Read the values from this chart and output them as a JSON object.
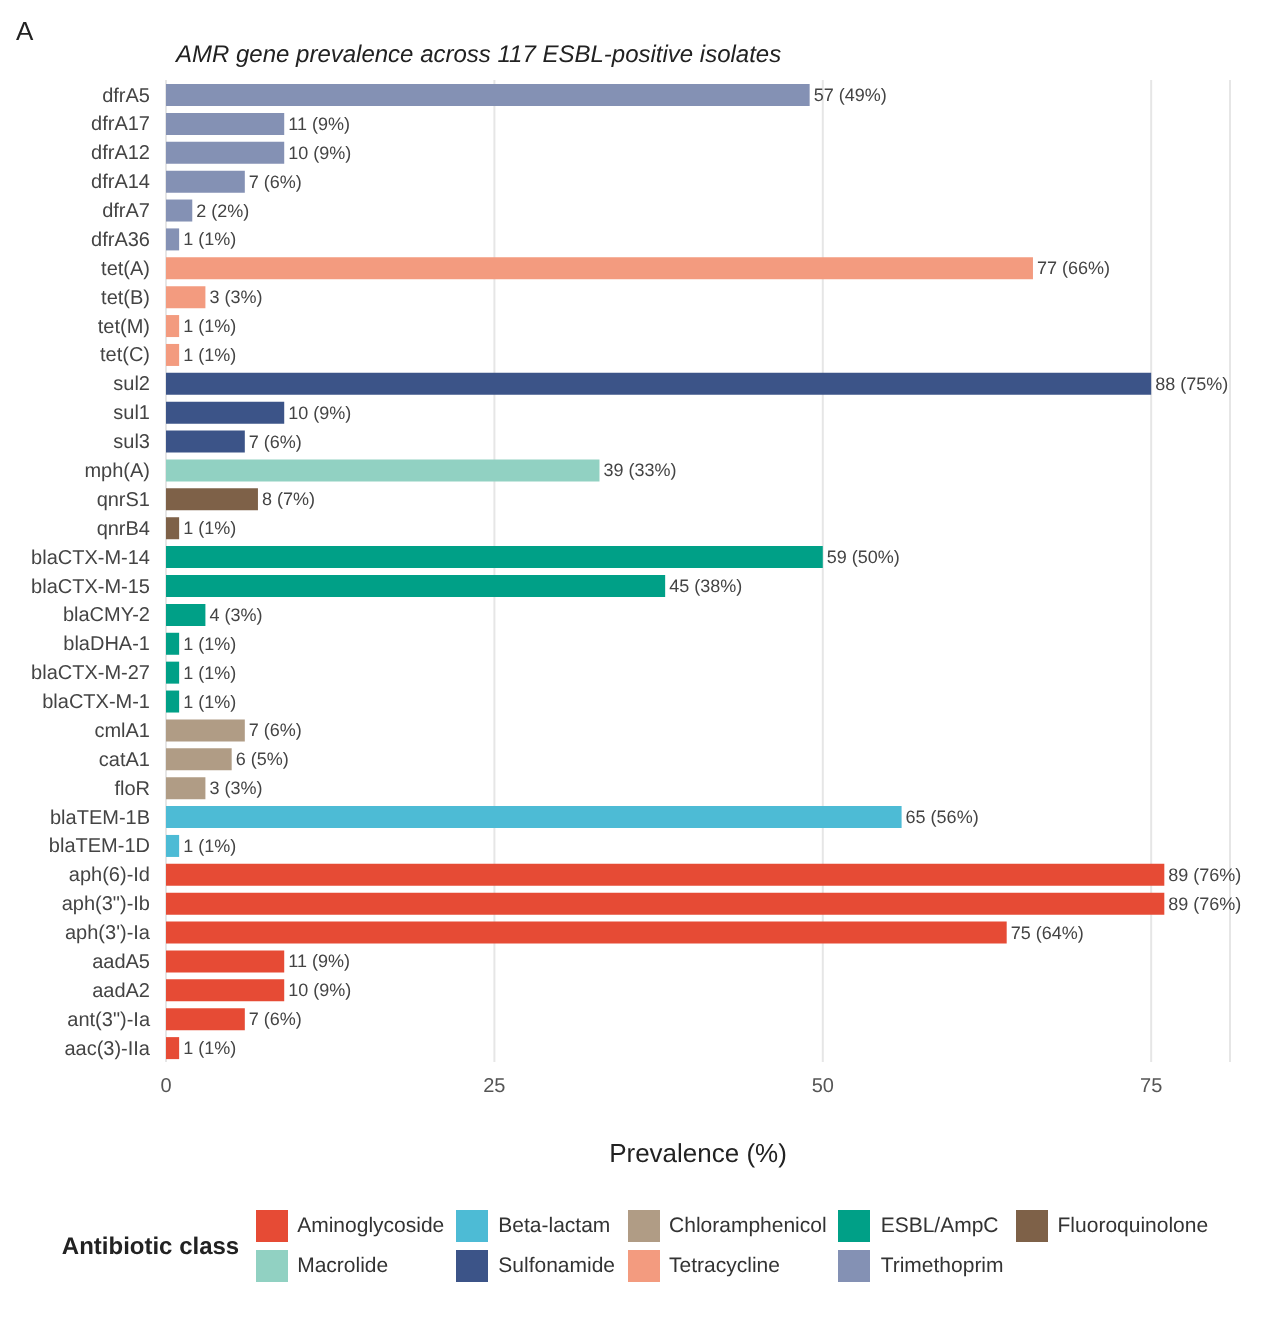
{
  "chart_data": {
    "type": "bar",
    "orientation": "horizontal",
    "stacked": true,
    "title": "AMR gene prevalence across 117 ESBL-positive isolates",
    "xlabel": "Prevalence (%)",
    "legend_title": "Antibiotic class",
    "annotations": [
      "A"
    ],
    "categories": [
      "dfrA5",
      "dfrA17",
      "dfrA12",
      "dfrA14",
      "dfrA7",
      "dfrA36",
      "tet(A)",
      "tet(B)",
      "tet(M)",
      "tet(C)",
      "sul2",
      "sul1",
      "sul3",
      "mph(A)",
      "qnrS1",
      "qnrB4",
      "blaCTX-M-14",
      "blaCTX-M-15",
      "blaCMY-2",
      "blaDHA-1",
      "blaCTX-M-27",
      "blaCTX-M-1",
      "cmlA1",
      "catA1",
      "floR",
      "blaTEM-1B",
      "blaTEM-1D",
      "aph(6)-Id",
      "aph(3\")-Ib",
      "aph(3')-Ia",
      "aadA5",
      "aadA2",
      "ant(3\")-Ia",
      "aac(3)-IIa"
    ],
    "series": [
      {
        "name": "Aminoglycoside",
        "color": "#e64b35",
        "values": [
          null,
          null,
          null,
          null,
          null,
          null,
          null,
          null,
          null,
          null,
          null,
          null,
          null,
          null,
          null,
          null,
          null,
          null,
          null,
          null,
          null,
          null,
          null,
          null,
          null,
          null,
          null,
          76,
          76,
          64,
          9,
          9,
          6,
          1
        ],
        "value_labels": [
          null,
          null,
          null,
          null,
          null,
          null,
          null,
          null,
          null,
          null,
          null,
          null,
          null,
          null,
          null,
          null,
          null,
          null,
          null,
          null,
          null,
          null,
          null,
          null,
          null,
          null,
          null,
          "89 (76%)",
          "89 (76%)",
          "75 (64%)",
          "11 (9%)",
          "10 (9%)",
          "7 (6%)",
          "1 (1%)"
        ]
      },
      {
        "name": "Beta-lactam",
        "color": "#4dbbd5",
        "values": [
          null,
          null,
          null,
          null,
          null,
          null,
          null,
          null,
          null,
          null,
          null,
          null,
          null,
          null,
          null,
          null,
          null,
          null,
          null,
          null,
          null,
          null,
          null,
          null,
          null,
          56,
          1,
          null,
          null,
          null,
          null,
          null,
          null,
          null
        ],
        "value_labels": [
          null,
          null,
          null,
          null,
          null,
          null,
          null,
          null,
          null,
          null,
          null,
          null,
          null,
          null,
          null,
          null,
          null,
          null,
          null,
          null,
          null,
          null,
          null,
          null,
          null,
          "65 (56%)",
          "1 (1%)",
          null,
          null,
          null,
          null,
          null,
          null,
          null
        ]
      },
      {
        "name": "Chloramphenicol",
        "color": "#b09c85",
        "values": [
          null,
          null,
          null,
          null,
          null,
          null,
          null,
          null,
          null,
          null,
          null,
          null,
          null,
          null,
          null,
          null,
          null,
          null,
          null,
          null,
          null,
          null,
          6,
          5,
          3,
          null,
          null,
          null,
          null,
          null,
          null,
          null,
          null,
          null
        ],
        "value_labels": [
          null,
          null,
          null,
          null,
          null,
          null,
          null,
          null,
          null,
          null,
          null,
          null,
          null,
          null,
          null,
          null,
          null,
          null,
          null,
          null,
          null,
          null,
          "7 (6%)",
          "6 (5%)",
          "3 (3%)",
          null,
          null,
          null,
          null,
          null,
          null,
          null,
          null,
          null
        ]
      },
      {
        "name": "ESBL/AmpC",
        "color": "#00a087",
        "values": [
          null,
          null,
          null,
          null,
          null,
          null,
          null,
          null,
          null,
          null,
          null,
          null,
          null,
          null,
          null,
          null,
          50,
          38,
          3,
          1,
          1,
          1,
          null,
          null,
          null,
          null,
          null,
          null,
          null,
          null,
          null,
          null,
          null,
          null
        ],
        "value_labels": [
          null,
          null,
          null,
          null,
          null,
          null,
          null,
          null,
          null,
          null,
          null,
          null,
          null,
          null,
          null,
          null,
          "59 (50%)",
          "45 (38%)",
          "4 (3%)",
          "1 (1%)",
          "1 (1%)",
          "1 (1%)",
          null,
          null,
          null,
          null,
          null,
          null,
          null,
          null,
          null,
          null,
          null,
          null
        ]
      },
      {
        "name": "Fluoroquinolone",
        "color": "#7e6148",
        "values": [
          null,
          null,
          null,
          null,
          null,
          null,
          null,
          null,
          null,
          null,
          null,
          null,
          null,
          null,
          7,
          1,
          null,
          null,
          null,
          null,
          null,
          null,
          null,
          null,
          null,
          null,
          null,
          null,
          null,
          null,
          null,
          null,
          null,
          null
        ],
        "value_labels": [
          null,
          null,
          null,
          null,
          null,
          null,
          null,
          null,
          null,
          null,
          null,
          null,
          null,
          null,
          "8 (7%)",
          "1 (1%)",
          null,
          null,
          null,
          null,
          null,
          null,
          null,
          null,
          null,
          null,
          null,
          null,
          null,
          null,
          null,
          null,
          null,
          null
        ]
      },
      {
        "name": "Macrolide",
        "color": "#91d1c2",
        "values": [
          null,
          null,
          null,
          null,
          null,
          null,
          null,
          null,
          null,
          null,
          null,
          null,
          null,
          33,
          null,
          null,
          null,
          null,
          null,
          null,
          null,
          null,
          null,
          null,
          null,
          null,
          null,
          null,
          null,
          null,
          null,
          null,
          null,
          null
        ],
        "value_labels": [
          null,
          null,
          null,
          null,
          null,
          null,
          null,
          null,
          null,
          null,
          null,
          null,
          null,
          "39 (33%)",
          null,
          null,
          null,
          null,
          null,
          null,
          null,
          null,
          null,
          null,
          null,
          null,
          null,
          null,
          null,
          null,
          null,
          null,
          null,
          null
        ]
      },
      {
        "name": "Sulfonamide",
        "color": "#3c5488",
        "values": [
          null,
          null,
          null,
          null,
          null,
          null,
          null,
          null,
          null,
          null,
          75,
          9,
          6,
          null,
          null,
          null,
          null,
          null,
          null,
          null,
          null,
          null,
          null,
          null,
          null,
          null,
          null,
          null,
          null,
          null,
          null,
          null,
          null,
          null
        ],
        "value_labels": [
          null,
          null,
          null,
          null,
          null,
          null,
          null,
          null,
          null,
          null,
          "88 (75%)",
          "10 (9%)",
          "7 (6%)",
          null,
          null,
          null,
          null,
          null,
          null,
          null,
          null,
          null,
          null,
          null,
          null,
          null,
          null,
          null,
          null,
          null,
          null,
          null,
          null,
          null
        ]
      },
      {
        "name": "Tetracycline",
        "color": "#f39b7f",
        "values": [
          null,
          null,
          null,
          null,
          null,
          null,
          66,
          3,
          1,
          1,
          null,
          null,
          null,
          null,
          null,
          null,
          null,
          null,
          null,
          null,
          null,
          null,
          null,
          null,
          null,
          null,
          null,
          null,
          null,
          null,
          null,
          null,
          null,
          null
        ],
        "value_labels": [
          null,
          null,
          null,
          null,
          null,
          null,
          "77 (66%)",
          "3 (3%)",
          "1 (1%)",
          "1 (1%)",
          null,
          null,
          null,
          null,
          null,
          null,
          null,
          null,
          null,
          null,
          null,
          null,
          null,
          null,
          null,
          null,
          null,
          null,
          null,
          null,
          null,
          null,
          null,
          null
        ]
      },
      {
        "name": "Trimethoprim",
        "color": "#8491b4",
        "values": [
          49,
          9,
          9,
          6,
          2,
          1,
          null,
          null,
          null,
          null,
          null,
          null,
          null,
          null,
          null,
          null,
          null,
          null,
          null,
          null,
          null,
          null,
          null,
          null,
          null,
          null,
          null,
          null,
          null,
          null,
          null,
          null,
          null,
          null
        ],
        "value_labels": [
          "57 (49%)",
          "11 (9%)",
          "10 (9%)",
          "7 (6%)",
          "2 (2%)",
          "1 (1%)",
          null,
          null,
          null,
          null,
          null,
          null,
          null,
          null,
          null,
          null,
          null,
          null,
          null,
          null,
          null,
          null,
          null,
          null,
          null,
          null,
          null,
          null,
          null,
          null,
          null,
          null,
          null,
          null
        ]
      }
    ],
    "xlim": [
      0,
      81
    ],
    "xticks": [
      0,
      25,
      50,
      75
    ],
    "grid": "x",
    "legend": "bottom"
  }
}
